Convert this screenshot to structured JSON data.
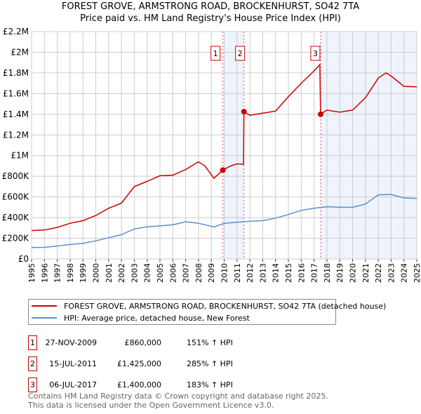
{
  "chart_data": {
    "type": "line",
    "title": "FOREST GROVE, ARMSTRONG ROAD, BROCKENHURST, SO42 7TA",
    "subtitle": "Price paid vs. HM Land Registry's House Price Index (HPI)",
    "xlim": [
      1995,
      2025
    ],
    "ylim": [
      0,
      2200000
    ],
    "x_ticks": [
      "1995",
      "1996",
      "1997",
      "1998",
      "1999",
      "2000",
      "2001",
      "2002",
      "2003",
      "2004",
      "2005",
      "2006",
      "2007",
      "2008",
      "2009",
      "2010",
      "2011",
      "2012",
      "2013",
      "2014",
      "2015",
      "2016",
      "2017",
      "2018",
      "2019",
      "2020",
      "2021",
      "2022",
      "2023",
      "2024",
      "2025"
    ],
    "y_ticks": [
      {
        "v": 0,
        "label": "£0"
      },
      {
        "v": 200000,
        "label": "£200K"
      },
      {
        "v": 400000,
        "label": "£400K"
      },
      {
        "v": 600000,
        "label": "£600K"
      },
      {
        "v": 800000,
        "label": "£800K"
      },
      {
        "v": 1000000,
        "label": "£1M"
      },
      {
        "v": 1200000,
        "label": "£1.2M"
      },
      {
        "v": 1400000,
        "label": "£1.4M"
      },
      {
        "v": 1600000,
        "label": "£1.6M"
      },
      {
        "v": 1800000,
        "label": "£1.8M"
      },
      {
        "v": 2000000,
        "label": "£2M"
      },
      {
        "v": 2200000,
        "label": "£2.2M"
      }
    ],
    "grid": true,
    "series": [
      {
        "name": "FOREST GROVE, ARMSTRONG ROAD, BROCKENHURST, SO42 7TA (detached house)",
        "color": "#cc0000",
        "x": [
          1995,
          1996,
          1997,
          1998,
          1999,
          2000,
          2001,
          2002,
          2003,
          2004,
          2005,
          2006,
          2007,
          2008,
          2008.5,
          2009.2,
          2009.9,
          2010.5,
          2011,
          2011.5,
          2011.54,
          2012,
          2013,
          2014,
          2015,
          2016,
          2017,
          2017.45,
          2017.51,
          2018,
          2019,
          2020,
          2021,
          2022,
          2022.6,
          2023,
          2024,
          2025
        ],
        "y": [
          275000,
          280000,
          305000,
          345000,
          370000,
          420000,
          490000,
          540000,
          700000,
          750000,
          805000,
          810000,
          865000,
          940000,
          900000,
          780000,
          860000,
          900000,
          920000,
          915000,
          1425000,
          1390000,
          1410000,
          1430000,
          1570000,
          1700000,
          1820000,
          1880000,
          1400000,
          1440000,
          1420000,
          1440000,
          1560000,
          1750000,
          1800000,
          1770000,
          1670000,
          1665000
        ]
      },
      {
        "name": "HPI: Average price, detached house, New Forest",
        "color": "#5b8fd0",
        "x": [
          1995,
          1996,
          1997,
          1998,
          1999,
          2000,
          2001,
          2002,
          2003,
          2004,
          2005,
          2006,
          2007,
          2008,
          2009.2,
          2010,
          2011,
          2012,
          2013,
          2014,
          2015,
          2016,
          2017,
          2018,
          2019,
          2020,
          2021,
          2022,
          2023,
          2024,
          2025
        ],
        "y": [
          110000,
          112000,
          125000,
          140000,
          150000,
          175000,
          205000,
          235000,
          290000,
          310000,
          320000,
          330000,
          360000,
          345000,
          310000,
          345000,
          355000,
          365000,
          370000,
          395000,
          430000,
          470000,
          490000,
          505000,
          500000,
          500000,
          530000,
          620000,
          625000,
          590000,
          585000
        ]
      }
    ],
    "sales": [
      {
        "label": "1",
        "x": 2009.9,
        "date": "27-NOV-2009",
        "price": 860000,
        "price_label": "£860,000",
        "hpi": "151% ↑ HPI"
      },
      {
        "label": "2",
        "x": 2011.54,
        "date": "15-JUL-2011",
        "price": 1425000,
        "price_label": "£1,425,000",
        "hpi": "285% ↑ HPI"
      },
      {
        "label": "3",
        "x": 2017.51,
        "date": "06-JUL-2017",
        "price": 1400000,
        "price_label": "£1,400,000",
        "hpi": "183% ↑ HPI"
      }
    ],
    "shaded": [
      [
        2010,
        2011.54
      ],
      [
        2017.51,
        2025
      ]
    ],
    "legend": "below"
  },
  "footer": {
    "line1": "Contains HM Land Registry data © Crown copyright and database right 2025.",
    "line2": "This data is licensed under the Open Government Licence v3.0."
  }
}
